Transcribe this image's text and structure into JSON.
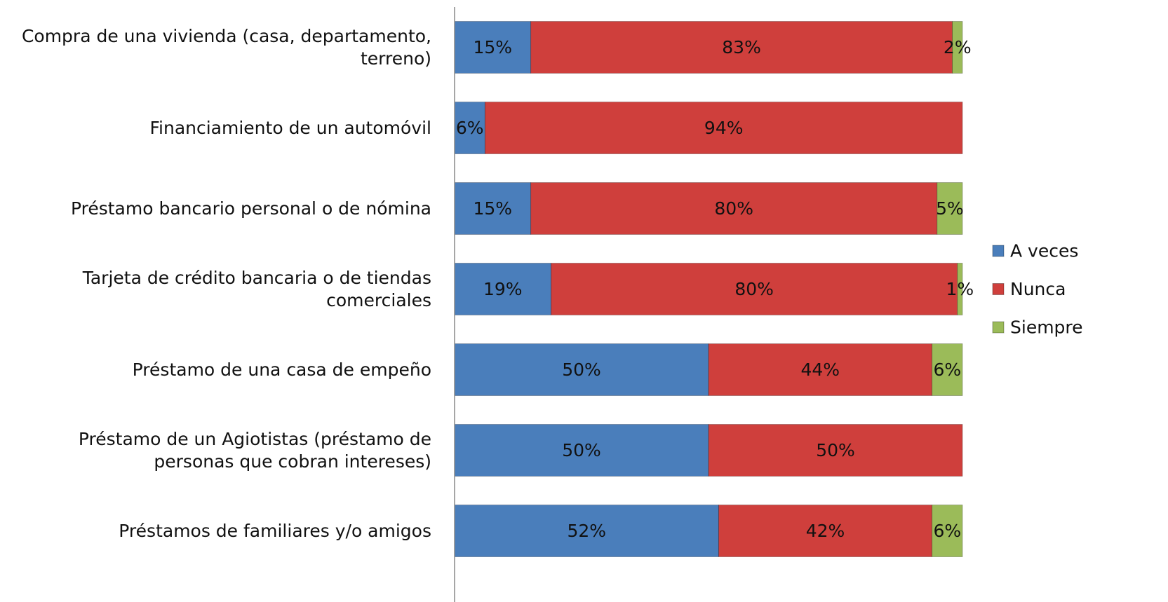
{
  "chart_data": {
    "type": "stacked_bar_horizontal",
    "categories": [
      "Compra de una vivienda (casa, departamento, terreno)",
      "Financiamiento de un automóvil",
      "Préstamo bancario personal o de nómina",
      "Tarjeta de crédito bancaria o de tiendas comerciales",
      "Préstamo de una casa de empeño",
      "Préstamo de un Agiotistas (préstamo de personas que cobran intereses)",
      "Préstamos de familiares y/o amigos"
    ],
    "series": [
      {
        "name": "A veces",
        "color": "#4a7ebb",
        "values": [
          15,
          6,
          15,
          19,
          50,
          50,
          52
        ],
        "value_labels": [
          "15%",
          "6%",
          "15%",
          "19%",
          "50%",
          "50%",
          "52%"
        ]
      },
      {
        "name": "Nunca",
        "color": "#cf3f3c",
        "values": [
          83,
          94,
          80,
          80,
          44,
          50,
          42
        ],
        "value_labels": [
          "83%",
          "94%",
          "80%",
          "80%",
          "44%",
          "50%",
          "42%"
        ]
      },
      {
        "name": "Siempre",
        "color": "#9bbb59",
        "values": [
          2,
          null,
          5,
          1,
          6,
          null,
          6
        ],
        "value_labels": [
          "2%",
          null,
          "5%",
          "1%",
          "6%",
          null,
          "6%"
        ]
      }
    ],
    "xlim": [
      0,
      100
    ],
    "legend": "right"
  }
}
